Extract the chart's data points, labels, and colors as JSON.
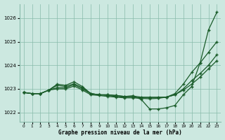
{
  "xlabel": "Graphe pression niveau de la mer (hPa)",
  "background_color": "#cce8e0",
  "grid_color": "#88bbaa",
  "line_color": "#1a5c2a",
  "ylim": [
    1021.6,
    1026.6
  ],
  "xlim": [
    -0.5,
    23.5
  ],
  "yticks": [
    1022,
    1023,
    1024,
    1025,
    1026
  ],
  "xticks": [
    0,
    1,
    2,
    3,
    4,
    5,
    6,
    7,
    8,
    9,
    10,
    11,
    12,
    13,
    14,
    15,
    16,
    17,
    18,
    19,
    20,
    21,
    22,
    23
  ],
  "series": [
    [
      1022.85,
      1022.8,
      1022.8,
      1022.95,
      1023.2,
      1023.15,
      1023.3,
      1023.1,
      1022.8,
      1022.75,
      1022.75,
      1022.72,
      1022.68,
      1022.7,
      1022.55,
      1022.15,
      1022.15,
      1022.2,
      1022.3,
      1022.75,
      1023.1,
      1024.1,
      1025.5,
      1026.25
    ],
    [
      1022.85,
      1022.8,
      1022.8,
      1022.95,
      1023.15,
      1023.1,
      1023.22,
      1023.05,
      1022.8,
      1022.75,
      1022.75,
      1022.72,
      1022.68,
      1022.7,
      1022.65,
      1022.65,
      1022.65,
      1022.65,
      1022.8,
      1023.2,
      1023.7,
      1024.1,
      1024.55,
      1025.0
    ],
    [
      1022.85,
      1022.8,
      1022.8,
      1022.95,
      1023.05,
      1023.05,
      1023.18,
      1023.0,
      1022.8,
      1022.75,
      1022.72,
      1022.68,
      1022.65,
      1022.65,
      1022.62,
      1022.62,
      1022.62,
      1022.65,
      1022.75,
      1023.0,
      1023.35,
      1023.65,
      1024.0,
      1024.45
    ],
    [
      1022.85,
      1022.8,
      1022.8,
      1022.95,
      1023.0,
      1023.0,
      1023.12,
      1022.95,
      1022.75,
      1022.72,
      1022.68,
      1022.65,
      1022.62,
      1022.62,
      1022.6,
      1022.58,
      1022.6,
      1022.65,
      1022.75,
      1022.95,
      1023.2,
      1023.5,
      1023.85,
      1024.2
    ]
  ]
}
